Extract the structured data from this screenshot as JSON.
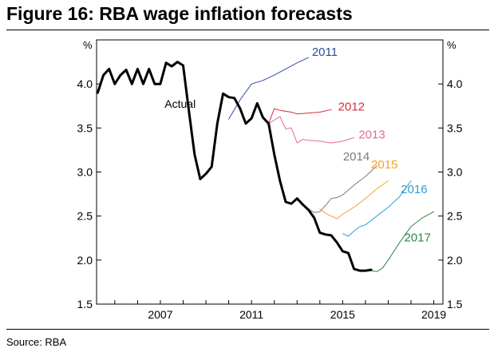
{
  "title": "Figure 16: RBA wage inflation forecasts",
  "source": "Source: RBA",
  "chart_data": {
    "type": "line",
    "title": "Figure 16: RBA wage inflation forecasts",
    "ylabel_left": "%",
    "ylabel_right": "%",
    "ylim": [
      1.5,
      4.5
    ],
    "xlim": [
      2004.2,
      2019.4
    ],
    "yticks": [
      1.5,
      2.0,
      2.5,
      3.0,
      3.5,
      4.0
    ],
    "ytick_labels": [
      "1.5",
      "2.0",
      "2.5",
      "3.0",
      "3.5",
      "4.0"
    ],
    "xticks": [
      2007,
      2011,
      2015,
      2019
    ],
    "xtick_labels": [
      "2007",
      "2011",
      "2015",
      "2019"
    ],
    "series": [
      {
        "name": "Actual",
        "color": "#000000",
        "width": 3,
        "x": [
          2004.25,
          2004.5,
          2004.75,
          2005,
          2005.25,
          2005.5,
          2005.75,
          2006,
          2006.25,
          2006.5,
          2006.75,
          2007,
          2007.25,
          2007.5,
          2007.75,
          2008,
          2008.25,
          2008.5,
          2008.75,
          2009,
          2009.25,
          2009.5,
          2009.75,
          2010,
          2010.25,
          2010.5,
          2010.75,
          2011,
          2011.25,
          2011.5,
          2011.75,
          2012,
          2012.25,
          2012.5,
          2012.75,
          2013,
          2013.25,
          2013.5,
          2013.75,
          2014,
          2014.25,
          2014.5,
          2014.75,
          2015,
          2015.25,
          2015.5,
          2015.75,
          2016,
          2016.25
        ],
        "y": [
          3.9,
          4.1,
          4.17,
          4.0,
          4.1,
          4.16,
          4.0,
          4.17,
          4.0,
          4.17,
          4.0,
          4.0,
          4.24,
          4.2,
          4.25,
          4.21,
          3.7,
          3.2,
          2.92,
          2.98,
          3.06,
          3.55,
          3.89,
          3.85,
          3.84,
          3.72,
          3.55,
          3.61,
          3.78,
          3.62,
          3.55,
          3.2,
          2.9,
          2.66,
          2.64,
          2.7,
          2.63,
          2.57,
          2.48,
          2.31,
          2.29,
          2.28,
          2.2,
          2.1,
          2.08,
          1.9,
          1.88,
          1.88,
          1.89
        ]
      },
      {
        "name": "2011",
        "color": "#2e4d9c",
        "width": 1,
        "x": [
          2010.0,
          2010.5,
          2011.0,
          2011.5,
          2012.0,
          2012.5,
          2013.0,
          2013.5
        ],
        "y": [
          3.6,
          3.82,
          4.0,
          4.04,
          4.1,
          4.17,
          4.24,
          4.3
        ]
      },
      {
        "name": "2012",
        "color": "#d42f3c",
        "width": 1,
        "x": [
          2011.75,
          2012.0,
          2012.25,
          2012.5,
          2012.75,
          2013.0,
          2013.5,
          2014.0,
          2014.5
        ],
        "y": [
          3.55,
          3.72,
          3.7,
          3.69,
          3.68,
          3.66,
          3.67,
          3.68,
          3.71
        ]
      },
      {
        "name": "2013",
        "color": "#e26ba0",
        "width": 1,
        "x": [
          2011.75,
          2012.25,
          2012.5,
          2012.75,
          2013.0,
          2013.25,
          2013.5,
          2014.0,
          2014.5,
          2015.0,
          2015.5
        ],
        "y": [
          3.55,
          3.63,
          3.49,
          3.5,
          3.33,
          3.37,
          3.36,
          3.35,
          3.33,
          3.35,
          3.39
        ]
      },
      {
        "name": "2014",
        "color": "#7b7b7b",
        "width": 1,
        "x": [
          2013.0,
          2013.25,
          2013.5,
          2013.75,
          2014.0,
          2014.25,
          2014.5,
          2014.75,
          2015.0,
          2015.5,
          2016.0,
          2016.5
        ],
        "y": [
          2.68,
          2.64,
          2.58,
          2.54,
          2.55,
          2.62,
          2.7,
          2.71,
          2.74,
          2.85,
          2.95,
          3.07
        ]
      },
      {
        "name": "2015",
        "color": "#f2a228",
        "width": 1,
        "x": [
          2014.0,
          2014.25,
          2014.5,
          2014.75,
          2015.0,
          2015.5,
          2016.0,
          2016.5,
          2017.0
        ],
        "y": [
          2.58,
          2.53,
          2.5,
          2.47,
          2.52,
          2.6,
          2.7,
          2.81,
          2.9
        ]
      },
      {
        "name": "2016",
        "color": "#2e9fd6",
        "width": 1,
        "x": [
          2015.0,
          2015.25,
          2015.5,
          2015.75,
          2016.0,
          2016.5,
          2017.0,
          2017.5,
          2018.0
        ],
        "y": [
          2.3,
          2.27,
          2.33,
          2.38,
          2.4,
          2.5,
          2.6,
          2.72,
          2.9
        ]
      },
      {
        "name": "2017",
        "color": "#2e8545",
        "width": 1,
        "x": [
          2016.25,
          2016.5,
          2016.75,
          2017.0,
          2017.5,
          2018.0,
          2018.5,
          2019.0
        ],
        "y": [
          1.88,
          1.87,
          1.91,
          2.0,
          2.2,
          2.38,
          2.48,
          2.55
        ]
      }
    ]
  }
}
